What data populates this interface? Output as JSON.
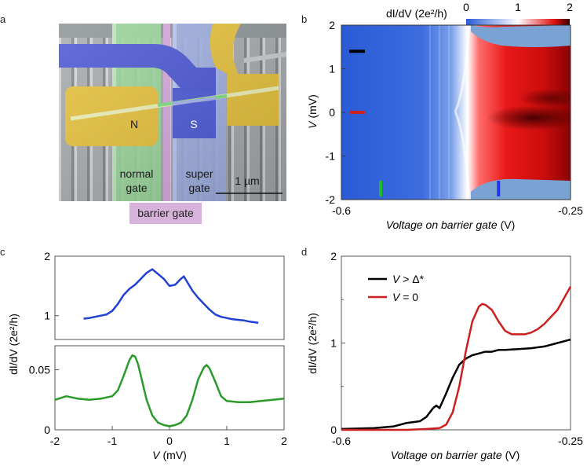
{
  "figure": {
    "panel_a": {
      "letter": "a",
      "labels": {
        "n": "N",
        "s": "S",
        "normal_gate_1": "normal",
        "normal_gate_2": "gate",
        "super_gate_1": "super",
        "super_gate_2": "gate",
        "scale": "1 µm",
        "barrier_gate": "barrier gate"
      },
      "colors": {
        "yellow": "#e8c23b",
        "blue": "#4a56d6",
        "green": "#9ad89a",
        "pink": "#d7b2da",
        "substrate": "#9aa0a3"
      }
    },
    "panel_b": {
      "letter": "b",
      "colorbar_label": "dI/dV (2e²/h)",
      "colorbar_ticks": [
        "0",
        "1",
        "2"
      ],
      "colors": {
        "low": "#2a5bd6",
        "mid": "#ffffff",
        "high": "#e01010",
        "max": "#3a0000",
        "background": "#7aa3d4"
      }
    },
    "panel_c": {
      "letter": "c",
      "ylabel": "dI/dV (2e²/h)",
      "top_ticks": [
        "2",
        "1"
      ],
      "bottom_ticks": [
        "0.05",
        "0"
      ]
    },
    "panel_d": {
      "letter": "d",
      "ylabel": "dI/dV (2e²/h)"
    }
  },
  "chart_data": [
    {
      "id": "b",
      "type": "heatmap",
      "title": "",
      "xlabel": "Voltage on barrier gate (V)",
      "xlabel_italic": "Voltage on barrier gate",
      "xlabel_unit": "(V)",
      "ylabel": "V (mV)",
      "ylabel_var": "V",
      "ylabel_unit": "(mV)",
      "xlim": [
        -0.6,
        -0.25
      ],
      "ylim": [
        -2,
        2
      ],
      "x_ticks": [
        "-0.6",
        "-0.25"
      ],
      "y_ticks": [
        "2",
        "1",
        "0",
        "-1",
        "-2"
      ],
      "colorbar_range": [
        0,
        2
      ],
      "markers": [
        {
          "name": "black-marker",
          "axis": "y",
          "value": 1.4,
          "color": "#000000"
        },
        {
          "name": "red-marker",
          "axis": "y",
          "value": 0,
          "color": "#cc2222"
        },
        {
          "name": "green-marker",
          "axis": "x",
          "value": -0.54,
          "color": "#22bb22"
        },
        {
          "name": "blue-marker",
          "axis": "x",
          "value": -0.36,
          "color": "#2233ee"
        }
      ]
    },
    {
      "id": "c-top",
      "type": "line",
      "xlim": [
        -2,
        2
      ],
      "ylim": [
        0.6,
        2.0
      ],
      "y_ticks": [
        2,
        1
      ],
      "series": [
        {
          "name": "blue",
          "color": "#1f3fd6",
          "x": [
            -1.5,
            -1.4,
            -1.3,
            -1.2,
            -1.1,
            -1.0,
            -0.9,
            -0.8,
            -0.7,
            -0.6,
            -0.5,
            -0.4,
            -0.3,
            -0.2,
            -0.1,
            0.0,
            0.1,
            0.2,
            0.25,
            0.3,
            0.4,
            0.5,
            0.6,
            0.7,
            0.8,
            0.9,
            1.0,
            1.1,
            1.2,
            1.3,
            1.4,
            1.55
          ],
          "values": [
            0.95,
            0.96,
            0.98,
            1.0,
            1.02,
            1.08,
            1.2,
            1.35,
            1.45,
            1.52,
            1.62,
            1.72,
            1.78,
            1.7,
            1.62,
            1.5,
            1.52,
            1.62,
            1.66,
            1.58,
            1.42,
            1.3,
            1.2,
            1.1,
            1.02,
            0.98,
            0.96,
            0.94,
            0.93,
            0.92,
            0.9,
            0.88
          ]
        }
      ]
    },
    {
      "id": "c-bottom",
      "type": "line",
      "xlabel": "V (mV)",
      "xlabel_var": "V",
      "xlabel_unit": "(mV)",
      "xlim": [
        -2,
        2
      ],
      "ylim": [
        0,
        0.07
      ],
      "x_ticks": [
        -2,
        -1,
        0,
        1,
        2
      ],
      "y_ticks": [
        0.05,
        0
      ],
      "series": [
        {
          "name": "green",
          "color": "#2a9a2a",
          "x": [
            -2.0,
            -1.8,
            -1.6,
            -1.4,
            -1.2,
            -1.0,
            -0.9,
            -0.8,
            -0.7,
            -0.65,
            -0.6,
            -0.55,
            -0.5,
            -0.4,
            -0.3,
            -0.2,
            -0.1,
            0.0,
            0.1,
            0.2,
            0.3,
            0.4,
            0.5,
            0.6,
            0.65,
            0.7,
            0.8,
            0.9,
            1.0,
            1.2,
            1.4,
            1.6,
            1.8,
            2.0
          ],
          "values": [
            0.025,
            0.028,
            0.026,
            0.025,
            0.026,
            0.028,
            0.033,
            0.045,
            0.058,
            0.062,
            0.061,
            0.055,
            0.045,
            0.025,
            0.012,
            0.006,
            0.004,
            0.003,
            0.004,
            0.006,
            0.012,
            0.025,
            0.042,
            0.052,
            0.054,
            0.051,
            0.04,
            0.028,
            0.024,
            0.023,
            0.023,
            0.024,
            0.025,
            0.026
          ]
        }
      ]
    },
    {
      "id": "d",
      "type": "line",
      "xlabel": "Voltage on barrier gate (V)",
      "xlabel_italic": "Voltage on barrier gate",
      "xlabel_unit": "(V)",
      "ylabel": "dI/dV (2e²/h)",
      "xlim": [
        -0.6,
        -0.25
      ],
      "ylim": [
        0,
        2
      ],
      "x_ticks": [
        "-0.6",
        "-0.25"
      ],
      "y_ticks": [
        2,
        1,
        0
      ],
      "legend": {
        "position": "top-left",
        "entries": [
          {
            "var": "V",
            "rest": " > Δ*"
          },
          {
            "var": "V",
            "rest": " = 0"
          }
        ]
      },
      "series": [
        {
          "name": "V > Δ*",
          "color": "#000000",
          "x": [
            -0.6,
            -0.55,
            -0.52,
            -0.5,
            -0.48,
            -0.47,
            -0.46,
            -0.455,
            -0.45,
            -0.44,
            -0.43,
            -0.42,
            -0.41,
            -0.4,
            -0.39,
            -0.38,
            -0.37,
            -0.36,
            -0.35,
            -0.33,
            -0.31,
            -0.29,
            -0.27,
            -0.25
          ],
          "values": [
            0.01,
            0.02,
            0.04,
            0.08,
            0.1,
            0.15,
            0.25,
            0.28,
            0.25,
            0.42,
            0.6,
            0.75,
            0.82,
            0.86,
            0.88,
            0.9,
            0.9,
            0.92,
            0.92,
            0.93,
            0.94,
            0.96,
            1.0,
            1.04
          ]
        },
        {
          "name": "V = 0",
          "color": "#cc1f1f",
          "x": [
            -0.6,
            -0.5,
            -0.47,
            -0.45,
            -0.44,
            -0.43,
            -0.42,
            -0.41,
            -0.4,
            -0.39,
            -0.385,
            -0.38,
            -0.37,
            -0.36,
            -0.35,
            -0.34,
            -0.33,
            -0.32,
            -0.31,
            -0.3,
            -0.29,
            -0.27,
            -0.25
          ],
          "values": [
            0.0,
            0.0,
            0.01,
            0.02,
            0.06,
            0.2,
            0.5,
            0.9,
            1.25,
            1.42,
            1.45,
            1.44,
            1.38,
            1.25,
            1.14,
            1.1,
            1.1,
            1.1,
            1.12,
            1.16,
            1.22,
            1.38,
            1.65
          ]
        }
      ]
    }
  ]
}
